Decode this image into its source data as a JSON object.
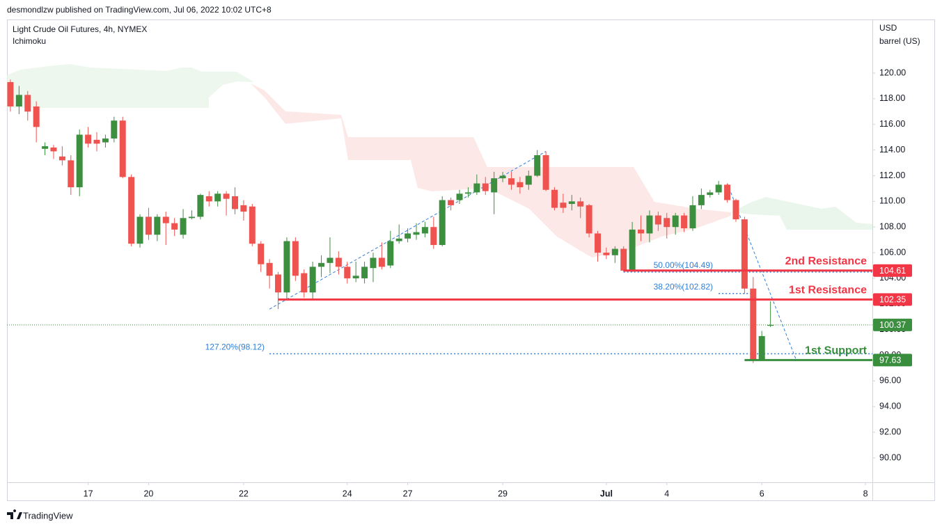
{
  "header": "desmondlzw published on TradingView.com, Jul 06, 2022 10:02 UTC+8",
  "footer": "TradingView",
  "chart_data": {
    "type": "candlestick",
    "title": "Light Crude Oil Futures, 4h, NYMEX",
    "subtitle": "Ichimoku",
    "y_unit": "USD",
    "y_label": "barrel (US)",
    "up_color": "#3d8f40",
    "down_color": "#ef5350",
    "open": [
      119.3,
      117.4,
      118.3,
      117.4,
      114.1,
      114.2,
      113.5,
      113.2,
      111.1,
      115.2,
      114.8,
      114.6,
      114.9,
      116.3,
      111.9,
      106.7,
      108.8,
      107.4,
      108.8,
      108.3,
      107.4,
      108.7,
      108.8,
      110.4,
      110.0,
      110.6,
      110.4,
      109.7,
      109.6,
      106.7,
      105.2,
      104.3,
      102.9,
      106.9,
      104.4,
      102.9,
      104.9,
      105.2,
      105.6,
      104.9,
      104.0,
      104.0,
      104.8,
      105.6,
      105.0,
      106.9,
      107.1,
      107.4,
      107.5,
      108.0,
      106.6,
      110.1,
      110.1,
      110.6,
      110.7,
      111.4,
      110.7,
      111.8,
      111.8,
      111.5,
      111.3,
      112.0,
      113.6,
      110.9,
      109.9,
      109.8,
      110.0,
      109.7,
      107.5,
      106.0,
      105.8,
      106.3,
      104.6,
      107.8,
      107.5,
      108.9,
      108.7,
      108.0,
      108.9,
      107.9,
      109.7,
      110.5,
      110.7,
      111.3,
      110.1,
      108.6,
      103.2,
      97.7,
      100.3
    ],
    "high": [
      119.5,
      119.0,
      118.6,
      117.8,
      114.6,
      114.4,
      114.3,
      113.6,
      115.6,
      115.8,
      115.4,
      115.2,
      116.6,
      116.6,
      112.1,
      109.0,
      109.5,
      109.0,
      109.2,
      108.7,
      109.4,
      109.3,
      110.6,
      110.8,
      110.8,
      110.8,
      111.1,
      110.1,
      109.8,
      106.9,
      105.5,
      104.5,
      107.2,
      107.2,
      104.7,
      105.3,
      105.8,
      107.2,
      106.1,
      105.3,
      105.3,
      105.3,
      106.0,
      106.8,
      107.7,
      108.2,
      107.9,
      108.3,
      108.4,
      108.8,
      110.4,
      110.3,
      110.9,
      111.1,
      112.1,
      111.9,
      112.3,
      112.3,
      112.3,
      111.9,
      112.4,
      114.0,
      113.9,
      111.1,
      110.6,
      110.5,
      110.3,
      109.8,
      107.7,
      106.4,
      106.5,
      106.5,
      108.4,
      108.9,
      109.3,
      109.2,
      109.1,
      109.1,
      109.1,
      110.4,
      111.0,
      110.9,
      111.6,
      111.4,
      110.2,
      108.8,
      104.1,
      99.9,
      102.2
    ],
    "low": [
      117.0,
      116.8,
      116.3,
      114.6,
      113.6,
      113.3,
      112.8,
      110.5,
      110.4,
      114.2,
      113.9,
      114.2,
      114.6,
      111.8,
      106.5,
      106.4,
      107.0,
      106.9,
      106.6,
      107.3,
      107.1,
      108.6,
      108.6,
      109.6,
      109.6,
      108.9,
      109.0,
      108.5,
      106.5,
      104.5,
      103.2,
      101.6,
      102.4,
      103.8,
      102.5,
      102.3,
      104.1,
      104.4,
      104.3,
      103.6,
      103.7,
      103.6,
      103.7,
      104.7,
      104.8,
      106.7,
      106.8,
      107.0,
      107.2,
      106.3,
      106.5,
      109.3,
      109.8,
      110.3,
      110.5,
      110.5,
      109.0,
      111.5,
      110.9,
      110.6,
      110.9,
      111.9,
      110.8,
      109.3,
      109.1,
      109.3,
      108.7,
      107.2,
      105.3,
      105.5,
      105.2,
      104.5,
      104.5,
      106.9,
      106.8,
      107.7,
      107.1,
      107.4,
      107.6,
      107.7,
      109.4,
      110.3,
      110.5,
      109.9,
      108.4,
      102.8,
      97.4,
      97.6,
      100.2
    ],
    "close": [
      117.4,
      118.3,
      117.0,
      115.8,
      114.3,
      113.9,
      113.2,
      111.1,
      115.2,
      114.5,
      114.5,
      114.9,
      116.3,
      111.9,
      106.7,
      108.8,
      107.4,
      108.8,
      108.3,
      107.8,
      108.7,
      108.8,
      110.5,
      110.0,
      110.6,
      110.2,
      109.4,
      109.2,
      106.7,
      105.1,
      104.2,
      102.9,
      106.9,
      104.2,
      102.9,
      104.9,
      105.2,
      105.6,
      104.9,
      104.0,
      104.2,
      104.9,
      105.6,
      104.9,
      106.9,
      107.1,
      107.5,
      107.6,
      108.0,
      106.6,
      110.1,
      109.7,
      110.6,
      110.7,
      111.4,
      110.8,
      111.8,
      112.0,
      111.3,
      111.1,
      112.0,
      113.6,
      110.9,
      109.5,
      109.5,
      110.0,
      109.6,
      107.5,
      106.0,
      105.8,
      106.3,
      104.6,
      107.8,
      107.5,
      108.9,
      108.2,
      108.0,
      108.9,
      107.9,
      109.7,
      110.5,
      110.7,
      111.3,
      110.1,
      108.6,
      103.2,
      97.6,
      99.5,
      100.37
    ],
    "xlim": [
      -0.4,
      99.8
    ],
    "xticks": [
      {
        "value": 9,
        "label": "17"
      },
      {
        "value": 16,
        "label": "20"
      },
      {
        "value": 27,
        "label": "22"
      },
      {
        "value": 39,
        "label": "24"
      },
      {
        "value": 46,
        "label": "27"
      },
      {
        "value": 57,
        "label": "29"
      },
      {
        "value": 69,
        "label": "Jul"
      },
      {
        "value": 76,
        "label": "4"
      },
      {
        "value": 87,
        "label": "6"
      },
      {
        "value": 99,
        "label": "8"
      }
    ],
    "ylim": [
      88.1,
      124.18
    ],
    "yticks": [
      {
        "value": 90,
        "label": "90.00"
      },
      {
        "value": 92,
        "label": "92.00"
      },
      {
        "value": 94,
        "label": "94.00"
      },
      {
        "value": 96,
        "label": "96.00"
      },
      {
        "value": 98,
        "label": "98.00"
      },
      {
        "value": 100,
        "label": "100.00"
      },
      {
        "value": 102,
        "label": "102.00"
      },
      {
        "value": 104,
        "label": "104.00"
      },
      {
        "value": 106,
        "label": "106.00"
      },
      {
        "value": 108,
        "label": "108.00"
      },
      {
        "value": 110,
        "label": "110.00"
      },
      {
        "value": 112,
        "label": "112.00"
      },
      {
        "value": 114,
        "label": "114.00"
      },
      {
        "value": 116,
        "label": "116.00"
      },
      {
        "value": 118,
        "label": "118.00"
      },
      {
        "value": 120,
        "label": "120.00"
      }
    ],
    "last_price": 100.37,
    "levels": [
      {
        "name": "2nd Resistance",
        "value": 104.61,
        "x0": 71,
        "color": "#f23645"
      },
      {
        "name": "1st Resistance",
        "value": 102.35,
        "x0": 31,
        "color": "#f23645"
      },
      {
        "name": "1st Support",
        "value": 97.63,
        "x0": 85,
        "color": "#388e3c"
      }
    ],
    "fibs": [
      {
        "label": "50.00%(104.49)",
        "value": 104.49,
        "x0": 71
      },
      {
        "label": "38.20%(102.82)",
        "value": 102.82,
        "x0": 82,
        "x1": 86
      },
      {
        "label": "127.20%(98.12)",
        "value": 98.12,
        "x0": 30
      }
    ],
    "trendlines": [
      {
        "x": [
          30,
          62
        ],
        "y": [
          101.6,
          113.9
        ]
      },
      {
        "x": [
          83,
          91
        ],
        "y": [
          111.4,
          97.6
        ]
      }
    ]
  }
}
